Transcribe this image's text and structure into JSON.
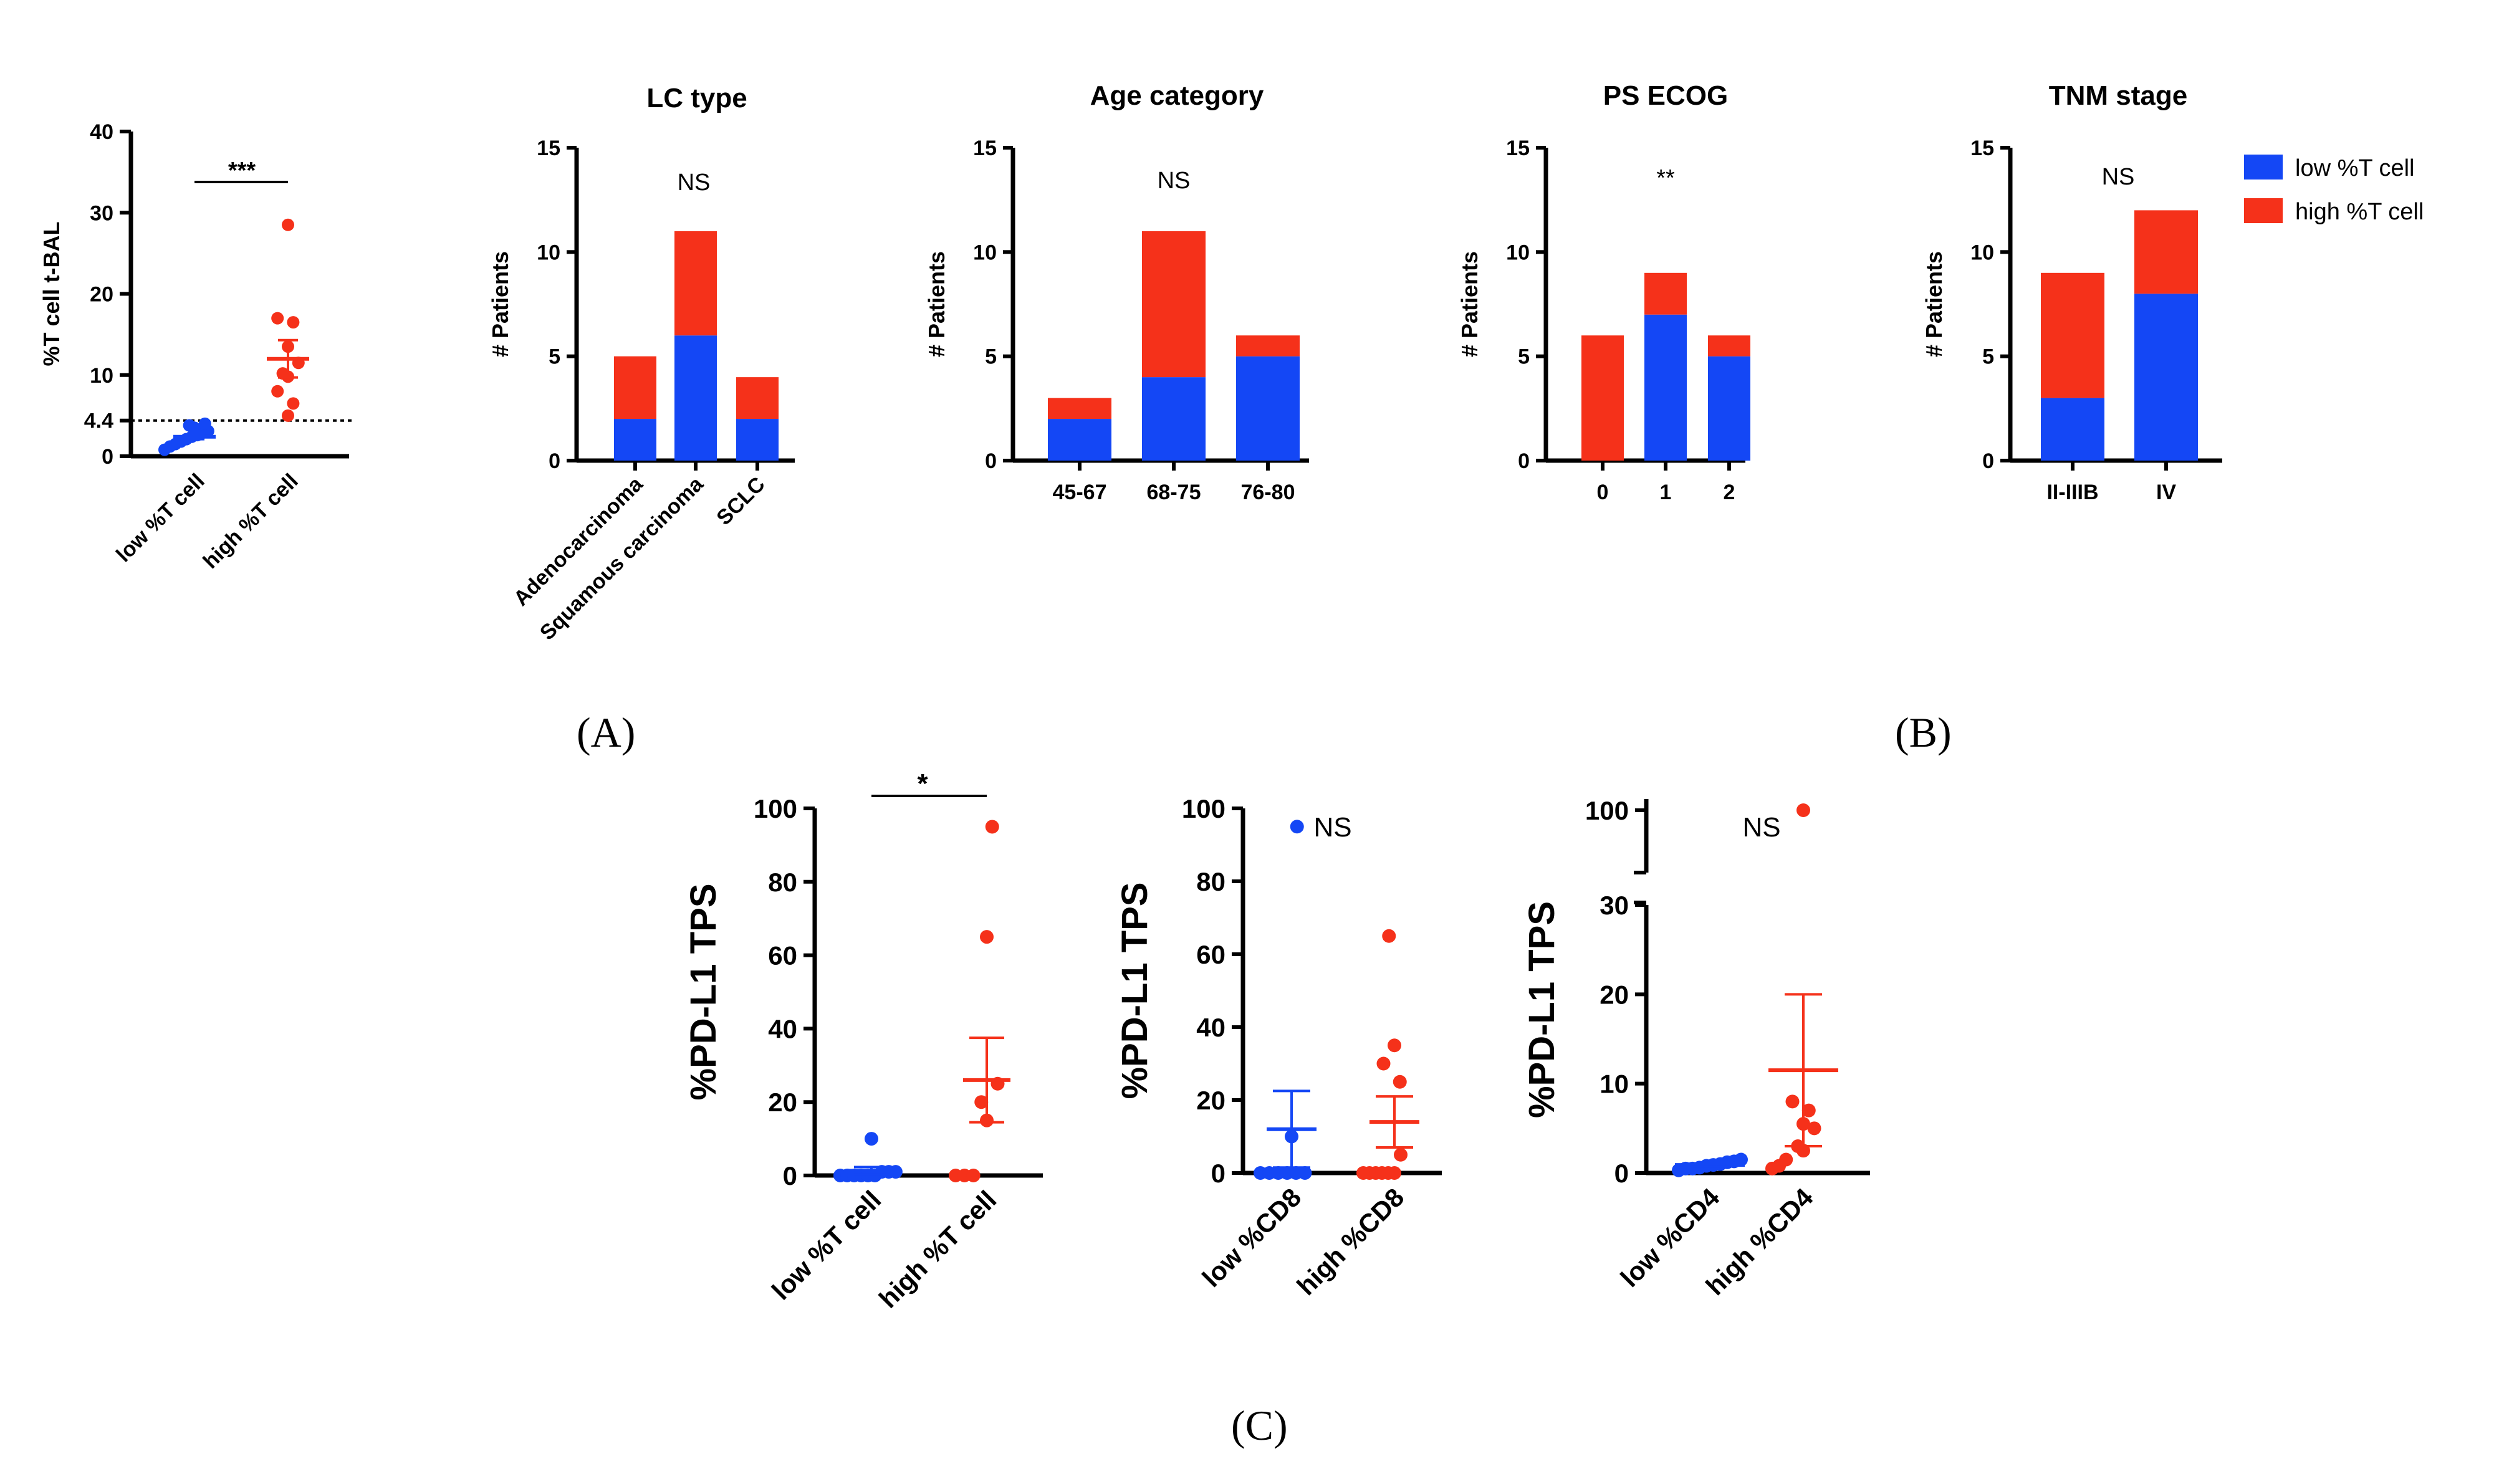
{
  "colors": {
    "low": "#1447f5",
    "high": "#f5311a"
  },
  "legend": {
    "entries": [
      "low %T cell",
      "high %T cell"
    ],
    "placement": "right"
  },
  "panel_labels": [
    "(A)",
    "(B)",
    "(C)"
  ],
  "chart_data": [
    {
      "id": "A",
      "type": "scatter",
      "ylabel": "%T cell t-BAL",
      "categories": [
        "low %T cell",
        "high %T cell"
      ],
      "yticks": [
        0,
        10,
        20,
        30,
        40
      ],
      "extra_tick": {
        "value": 4.4,
        "label": "4.4"
      },
      "ylim": [
        0,
        40
      ],
      "threshold_line": 4.4,
      "significance": "***",
      "series": [
        {
          "values": [
            0.8,
            1.2,
            1.5,
            1.8,
            2.1,
            2.4,
            2.6,
            2.9,
            3.1,
            3.5,
            3.8,
            4.0
          ],
          "mean": 2.4,
          "sem": 0.3
        },
        {
          "values": [
            5.0,
            6.5,
            8.0,
            9.8,
            10.2,
            11.5,
            13.5,
            16.5,
            17.0,
            28.5
          ],
          "mean": 12.0,
          "sem": 2.3
        }
      ]
    },
    {
      "id": "B1",
      "type": "bar",
      "stacked": true,
      "title": "LC type",
      "ylabel": "# Patients",
      "categories": [
        "Adenocarcinoma",
        "Squamous carcinoma",
        "SCLC"
      ],
      "yticks": [
        0,
        5,
        10,
        15
      ],
      "ylim": [
        0,
        15
      ],
      "significance": "NS",
      "series": [
        {
          "name": "low %T cell",
          "values": [
            2,
            6,
            2
          ]
        },
        {
          "name": "high %T cell",
          "values": [
            3,
            5,
            2
          ]
        }
      ]
    },
    {
      "id": "B2",
      "type": "bar",
      "stacked": true,
      "title": "Age category",
      "ylabel": "# Patients",
      "categories": [
        "45-67",
        "68-75",
        "76-80"
      ],
      "yticks": [
        0,
        5,
        10,
        15
      ],
      "ylim": [
        0,
        15
      ],
      "significance": "NS",
      "series": [
        {
          "name": "low %T cell",
          "values": [
            2,
            4,
            5
          ]
        },
        {
          "name": "high %T cell",
          "values": [
            1,
            7,
            1
          ]
        }
      ]
    },
    {
      "id": "B3",
      "type": "bar",
      "stacked": true,
      "title": "PS ECOG",
      "ylabel": "# Patients",
      "categories": [
        "0",
        "1",
        "2"
      ],
      "yticks": [
        0,
        5,
        10,
        15
      ],
      "ylim": [
        0,
        15
      ],
      "significance": "**",
      "series": [
        {
          "name": "low %T cell",
          "values": [
            0,
            7,
            5
          ]
        },
        {
          "name": "high %T cell",
          "values": [
            6,
            2,
            1
          ]
        }
      ]
    },
    {
      "id": "B4",
      "type": "bar",
      "stacked": true,
      "title": "TNM stage",
      "ylabel": "# Patients",
      "categories": [
        "II-IIIB",
        "IV"
      ],
      "yticks": [
        0,
        5,
        10,
        15
      ],
      "ylim": [
        0,
        15
      ],
      "significance": "NS",
      "series": [
        {
          "name": "low %T cell",
          "values": [
            3,
            8
          ]
        },
        {
          "name": "high %T cell",
          "values": [
            6,
            4
          ]
        }
      ]
    },
    {
      "id": "C1",
      "type": "scatter",
      "ylabel": "%PD-L1 TPS",
      "categories": [
        "low %T cell",
        "high %T cell"
      ],
      "yticks": [
        0,
        20,
        40,
        60,
        80,
        100
      ],
      "ylim": [
        0,
        100
      ],
      "significance": "*",
      "series": [
        {
          "values": [
            0,
            0,
            0,
            0,
            0,
            0,
            1,
            1,
            1,
            10
          ],
          "mean": 1.3,
          "sem": 1.0
        },
        {
          "values": [
            0,
            0,
            0,
            15,
            20,
            25,
            65,
            95
          ],
          "mean": 26,
          "sem": 11.5
        }
      ]
    },
    {
      "id": "C2",
      "type": "scatter",
      "ylabel": "%PD-L1 TPS",
      "categories": [
        "low %CD8",
        "high %CD8"
      ],
      "yticks": [
        0,
        20,
        40,
        60,
        80,
        100
      ],
      "ylim": [
        0,
        100
      ],
      "significance": "NS",
      "series": [
        {
          "values": [
            0,
            0,
            0,
            0,
            0,
            0,
            10,
            95
          ],
          "mean": 12,
          "sem": 10.5
        },
        {
          "values": [
            0,
            0,
            0,
            0,
            0,
            0,
            5,
            25,
            30,
            35,
            65
          ],
          "mean": 14,
          "sem": 7.0
        }
      ]
    },
    {
      "id": "C3",
      "type": "scatter",
      "ylabel": "%PD-L1 TPS",
      "categories": [
        "low %CD4",
        "high %CD4"
      ],
      "yticks": [
        0,
        10,
        20,
        30
      ],
      "ytick_top": {
        "value": 100,
        "label": "100"
      },
      "ylim": [
        0,
        30
      ],
      "axis_break": true,
      "significance": "NS",
      "series": [
        {
          "values": [
            0.3,
            0.5,
            0.5,
            0.6,
            0.8,
            0.9,
            1.0,
            1.2,
            1.3,
            1.5
          ],
          "mean": 0.9,
          "sem": 0.15
        },
        {
          "values": [
            0.5,
            0.8,
            1.5,
            2.5,
            3.0,
            5.0,
            5.5,
            7.0,
            8.0,
            98
          ],
          "mean": 11.5,
          "sem": 8.5
        }
      ]
    }
  ]
}
